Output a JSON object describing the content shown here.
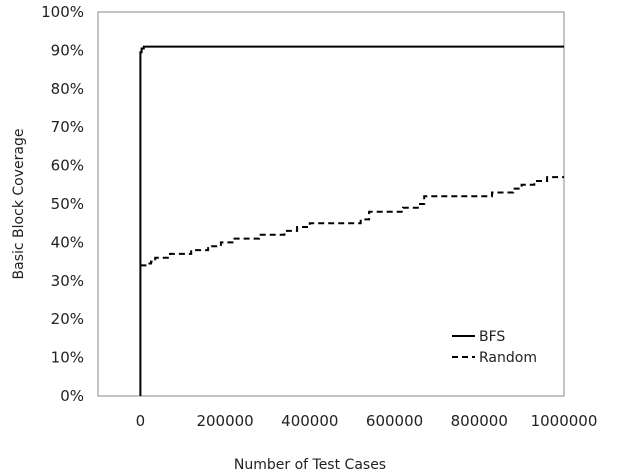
{
  "chart_data": {
    "type": "line",
    "title": "",
    "xlabel": "Number of Test Cases",
    "ylabel": "Basic Block Coverage",
    "xlim": [
      -100000,
      1000000
    ],
    "ylim": [
      0,
      100
    ],
    "x_ticks": [
      0,
      200000,
      400000,
      600000,
      800000,
      1000000
    ],
    "x_tick_labels": [
      "0",
      "200000",
      "400000",
      "600000",
      "800000",
      "1000000"
    ],
    "y_ticks": [
      0,
      10,
      20,
      30,
      40,
      50,
      60,
      70,
      80,
      90,
      100
    ],
    "y_tick_labels": [
      "0%",
      "10%",
      "20%",
      "30%",
      "40%",
      "50%",
      "60%",
      "70%",
      "80%",
      "90%",
      "100%"
    ],
    "grid": false,
    "legend_position": "bottom-right",
    "series": [
      {
        "name": "BFS",
        "style": "solid",
        "color": "#000000",
        "points": [
          [
            0,
            0
          ],
          [
            0,
            45
          ],
          [
            0,
            89.5
          ],
          [
            3000,
            90.5
          ],
          [
            8000,
            91
          ],
          [
            1000000,
            91
          ]
        ]
      },
      {
        "name": "Random",
        "style": "dashed",
        "color": "#000000",
        "points": [
          [
            0,
            34
          ],
          [
            15000,
            34.5
          ],
          [
            25000,
            35
          ],
          [
            35000,
            36
          ],
          [
            70000,
            37
          ],
          [
            120000,
            38
          ],
          [
            160000,
            39
          ],
          [
            190000,
            40
          ],
          [
            220000,
            41
          ],
          [
            280000,
            42
          ],
          [
            340000,
            43
          ],
          [
            370000,
            44
          ],
          [
            400000,
            45
          ],
          [
            520000,
            46
          ],
          [
            540000,
            48
          ],
          [
            620000,
            49
          ],
          [
            660000,
            50
          ],
          [
            670000,
            52
          ],
          [
            800000,
            52
          ],
          [
            830000,
            53
          ],
          [
            880000,
            54
          ],
          [
            900000,
            55
          ],
          [
            930000,
            56
          ],
          [
            960000,
            57
          ],
          [
            1000000,
            57
          ]
        ]
      }
    ]
  }
}
